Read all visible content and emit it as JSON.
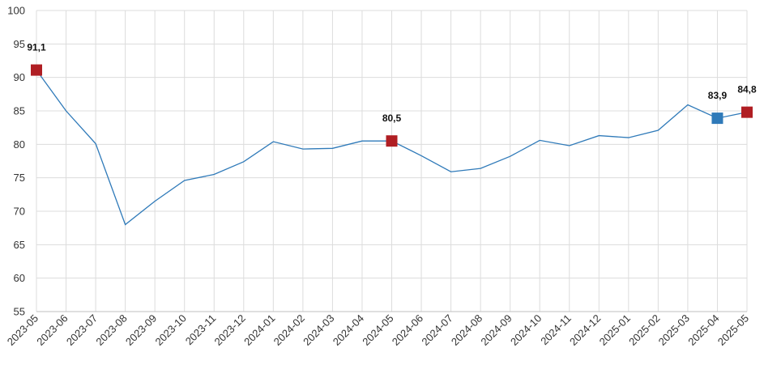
{
  "chart_data": {
    "type": "line",
    "title": "",
    "xlabel": "",
    "ylabel": "",
    "ylim": [
      55,
      100
    ],
    "yticks": [
      55,
      60,
      65,
      70,
      75,
      80,
      85,
      90,
      95,
      100
    ],
    "grid": true,
    "categories": [
      "2023-05",
      "2023-06",
      "2023-07",
      "2023-08",
      "2023-09",
      "2023-10",
      "2023-11",
      "2023-12",
      "2024-01",
      "2024-02",
      "2024-03",
      "2024-04",
      "2024-05",
      "2024-06",
      "2024-07",
      "2024-08",
      "2024-09",
      "2024-10",
      "2024-11",
      "2024-12",
      "2025-01",
      "2025-02",
      "2025-03",
      "2025-04",
      "2025-05"
    ],
    "series": [
      {
        "color": "#2f7ab9",
        "values": [
          91.1,
          85.0,
          80.1,
          68.0,
          71.5,
          74.6,
          75.5,
          77.4,
          80.4,
          79.3,
          79.4,
          80.5,
          80.5,
          78.3,
          75.9,
          76.4,
          78.2,
          80.6,
          79.8,
          81.3,
          81.0,
          82.1,
          85.9,
          83.9,
          84.8
        ]
      }
    ],
    "markers": [
      {
        "index": 0,
        "label": "91,1",
        "color": "#b01e23"
      },
      {
        "index": 12,
        "label": "80,5",
        "color": "#b01e23"
      },
      {
        "index": 23,
        "label": "83,9",
        "color": "#2f7ab9"
      },
      {
        "index": 24,
        "label": "84,8",
        "color": "#b01e23"
      }
    ]
  }
}
